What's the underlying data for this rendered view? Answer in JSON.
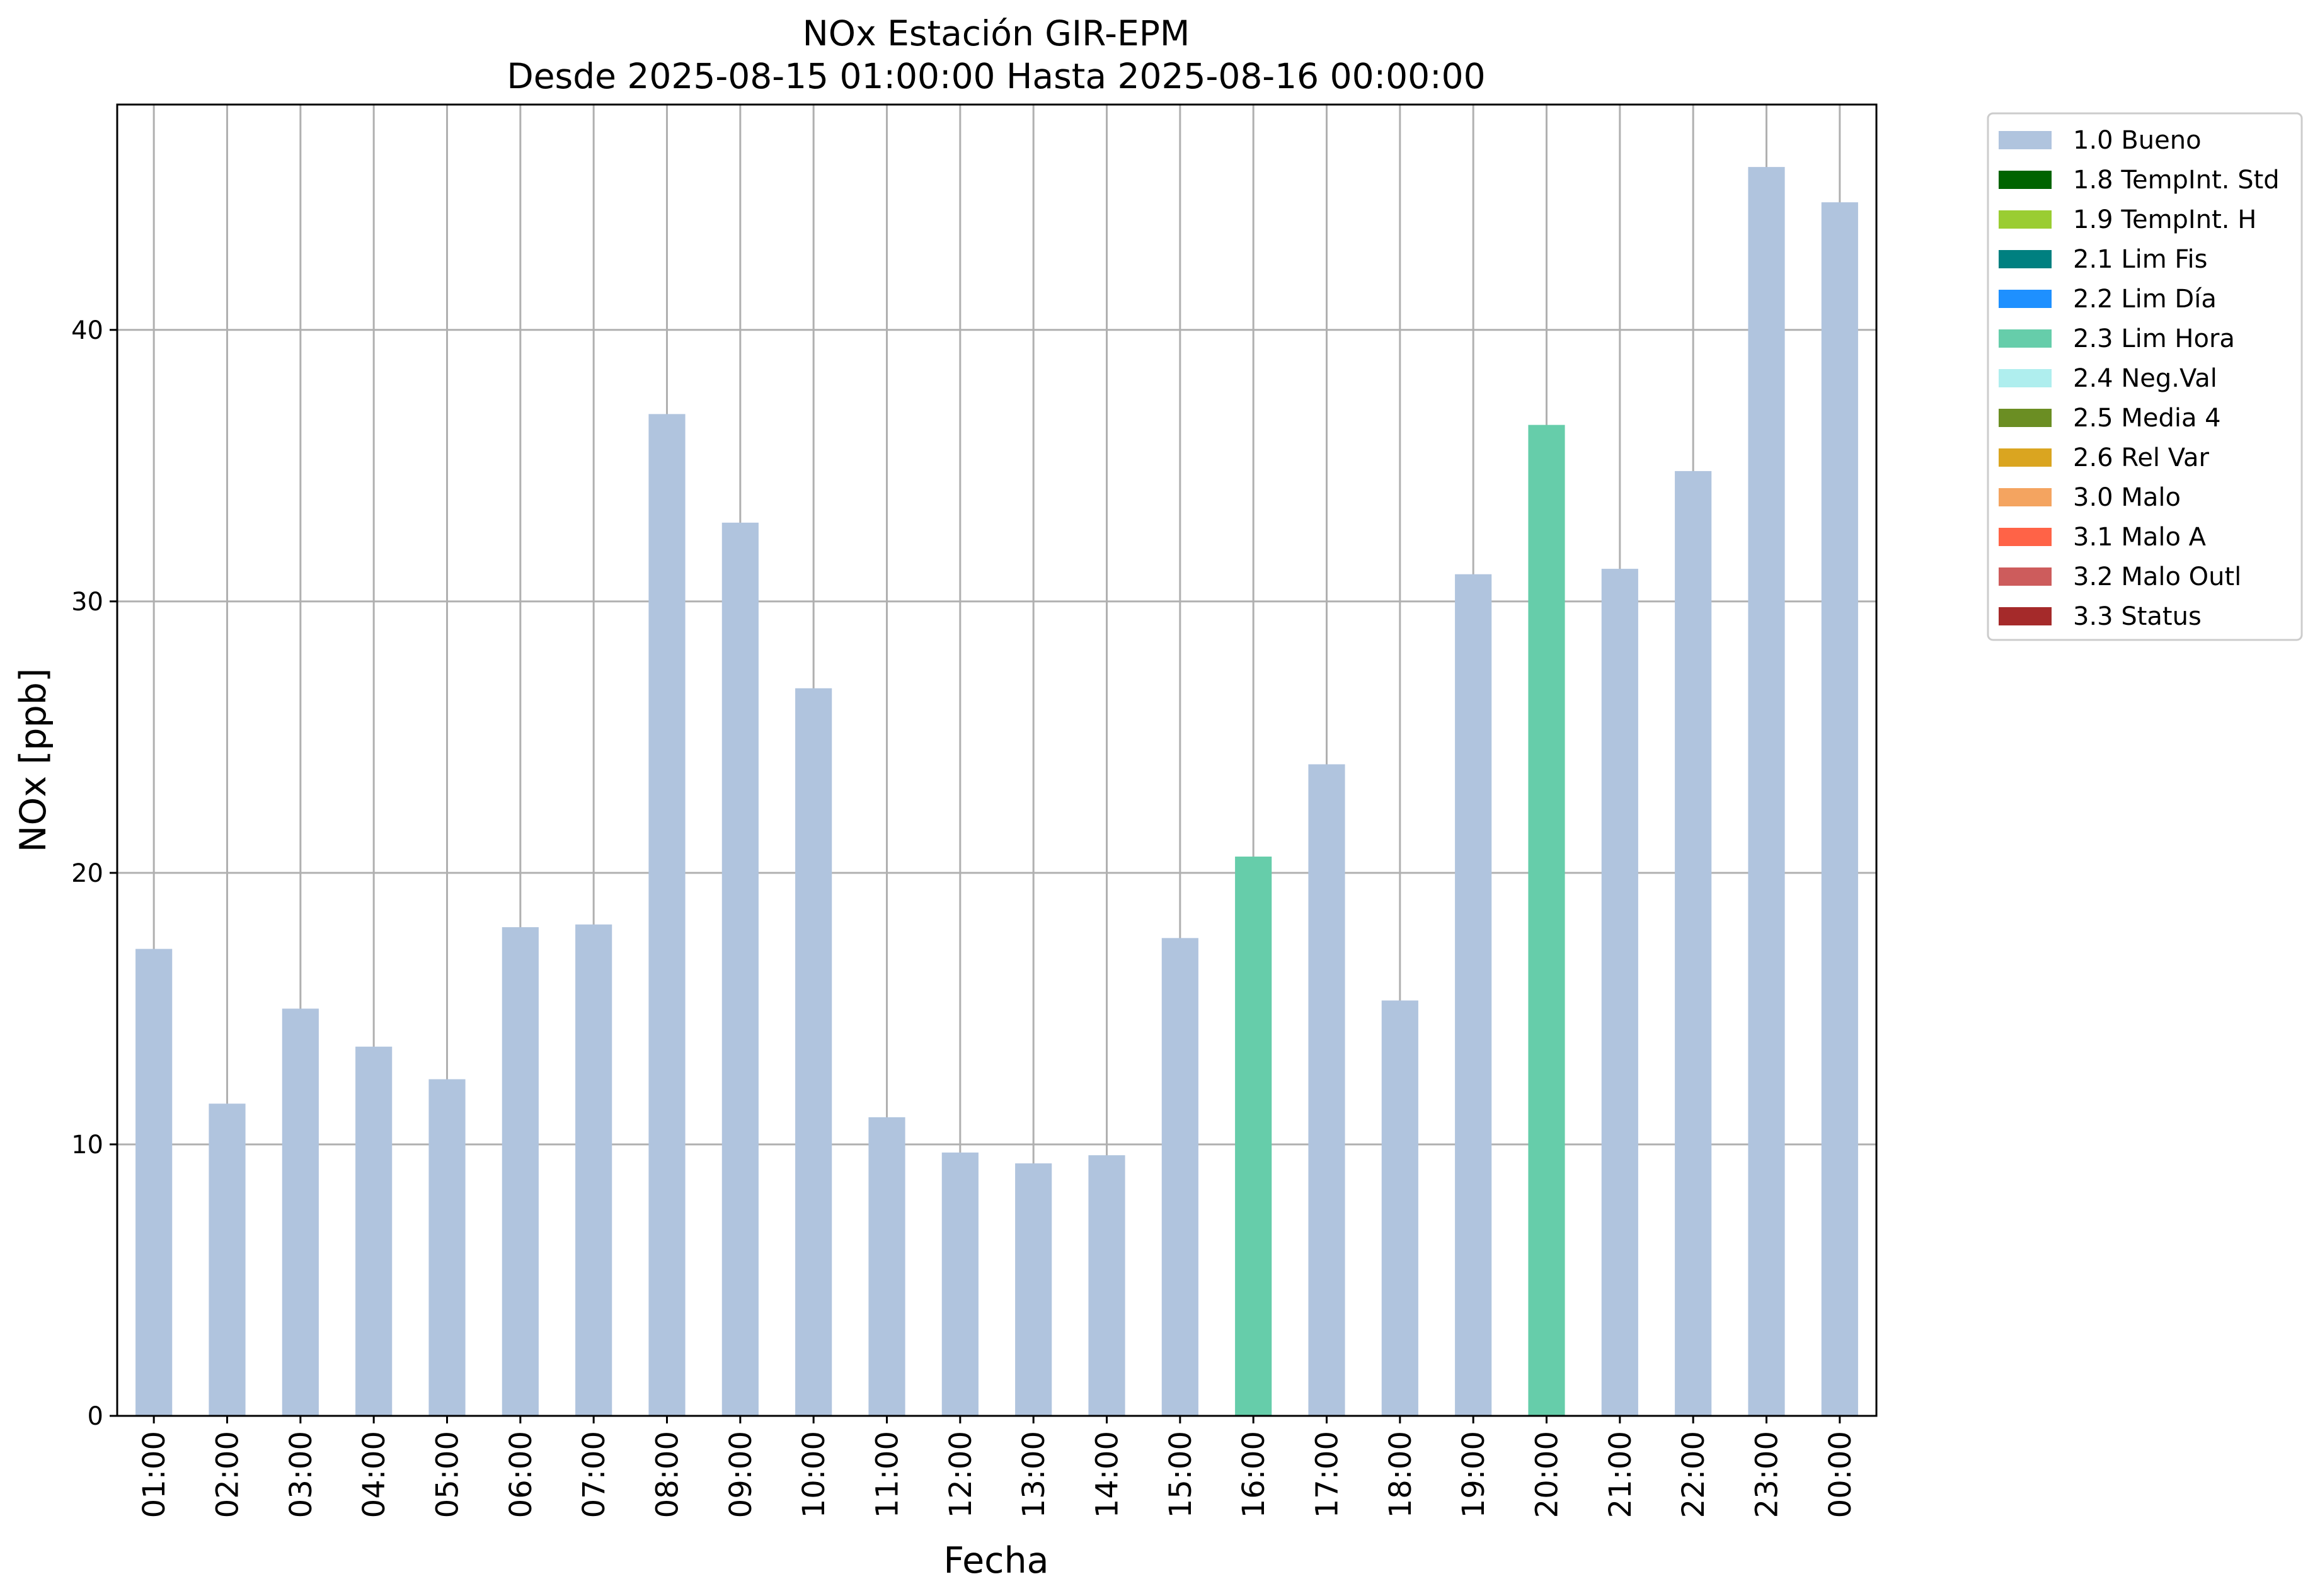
{
  "chart_data": {
    "type": "bar",
    "title": "NOx Estación GIR-EPM",
    "subtitle": "Desde 2025-08-15 01:00:00 Hasta 2025-08-16 00:00:00",
    "xlabel": "Fecha",
    "ylabel": "NOx [ppb]",
    "ylim": [
      0,
      48.3
    ],
    "yticks": [
      "0",
      "10",
      "20",
      "30",
      "40"
    ],
    "grid": true,
    "legend_position": "outside-top-right",
    "categories": [
      "01:00",
      "02:00",
      "03:00",
      "04:00",
      "05:00",
      "06:00",
      "07:00",
      "08:00",
      "09:00",
      "10:00",
      "11:00",
      "12:00",
      "13:00",
      "14:00",
      "15:00",
      "16:00",
      "17:00",
      "18:00",
      "19:00",
      "20:00",
      "21:00",
      "22:00",
      "23:00",
      "00:00"
    ],
    "values": [
      17.2,
      11.5,
      15.0,
      13.6,
      12.4,
      18.0,
      18.1,
      36.9,
      32.9,
      26.8,
      11.0,
      9.7,
      9.3,
      9.6,
      17.6,
      20.6,
      24.0,
      15.3,
      31.0,
      36.5,
      31.2,
      34.8,
      46.0,
      44.7
    ],
    "quality": [
      "1.0 Bueno",
      "1.0 Bueno",
      "1.0 Bueno",
      "1.0 Bueno",
      "1.0 Bueno",
      "1.0 Bueno",
      "1.0 Bueno",
      "1.0 Bueno",
      "1.0 Bueno",
      "1.0 Bueno",
      "1.0 Bueno",
      "1.0 Bueno",
      "1.0 Bueno",
      "1.0 Bueno",
      "1.0 Bueno",
      "2.3 Lim Hora",
      "1.0 Bueno",
      "1.0 Bueno",
      "1.0 Bueno",
      "2.3 Lim Hora",
      "1.0 Bueno",
      "1.0 Bueno",
      "1.0 Bueno",
      "1.0 Bueno"
    ],
    "legend": [
      {
        "label": "1.0 Bueno",
        "color": "#b0c4de"
      },
      {
        "label": "1.8 TempInt. Std",
        "color": "#006400"
      },
      {
        "label": "1.9 TempInt. H",
        "color": "#9acd32"
      },
      {
        "label": "2.1 Lim Fis",
        "color": "#008080"
      },
      {
        "label": "2.2 Lim Día",
        "color": "#1e90ff"
      },
      {
        "label": "2.3 Lim Hora",
        "color": "#66cdaa"
      },
      {
        "label": "2.4 Neg.Val",
        "color": "#afeeee"
      },
      {
        "label": "2.5 Media 4",
        "color": "#6b8e23"
      },
      {
        "label": "2.6 Rel Var",
        "color": "#daa520"
      },
      {
        "label": "3.0 Malo",
        "color": "#f4a460"
      },
      {
        "label": "3.1 Malo A",
        "color": "#ff6347"
      },
      {
        "label": "3.2 Malo Outl",
        "color": "#cd5c5c"
      },
      {
        "label": "3.3 Status",
        "color": "#a52a2a"
      }
    ]
  }
}
